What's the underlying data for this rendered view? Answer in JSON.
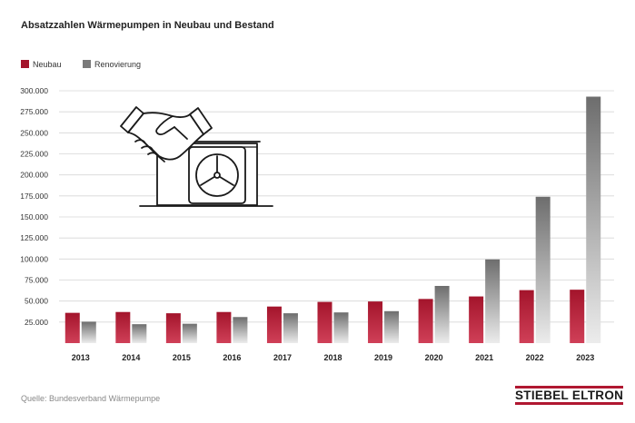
{
  "colors": {
    "neubau": "#a3142b",
    "renovierung": "#7a7a7a",
    "text": "#222222",
    "grid": "#d6d6d6",
    "brand_accent": "#b01731"
  },
  "brand": "STIEBEL ELTRON",
  "source": "Quelle: Bundesverband Wärmepumpe",
  "illustration": "handshake-heat-pump-icon",
  "chart_data": {
    "type": "bar",
    "title": "Absatzzahlen Wärmepumpen in Neubau und Bestand",
    "xlabel": "",
    "ylabel": "",
    "ylim": [
      0,
      300000
    ],
    "yticks": [
      25000,
      50000,
      75000,
      100000,
      125000,
      150000,
      175000,
      200000,
      225000,
      250000,
      275000,
      300000
    ],
    "ytick_labels": [
      "25.000",
      "50.000",
      "75.000",
      "100.000",
      "125.000",
      "150.000",
      "175.000",
      "200.000",
      "225.000",
      "250.000",
      "275.000",
      "300.000"
    ],
    "categories": [
      "2013",
      "2014",
      "2015",
      "2016",
      "2017",
      "2018",
      "2019",
      "2020",
      "2021",
      "2022",
      "2023"
    ],
    "series": [
      {
        "name": "Neubau",
        "values": [
          36000,
          37000,
          35500,
          37000,
          43500,
          49000,
          49500,
          52500,
          55500,
          63000,
          63500
        ]
      },
      {
        "name": "Renovierung",
        "values": [
          25500,
          22500,
          23000,
          31000,
          35500,
          36500,
          38000,
          68000,
          99500,
          174000,
          293000
        ]
      }
    ],
    "legend_position": "top-left"
  }
}
